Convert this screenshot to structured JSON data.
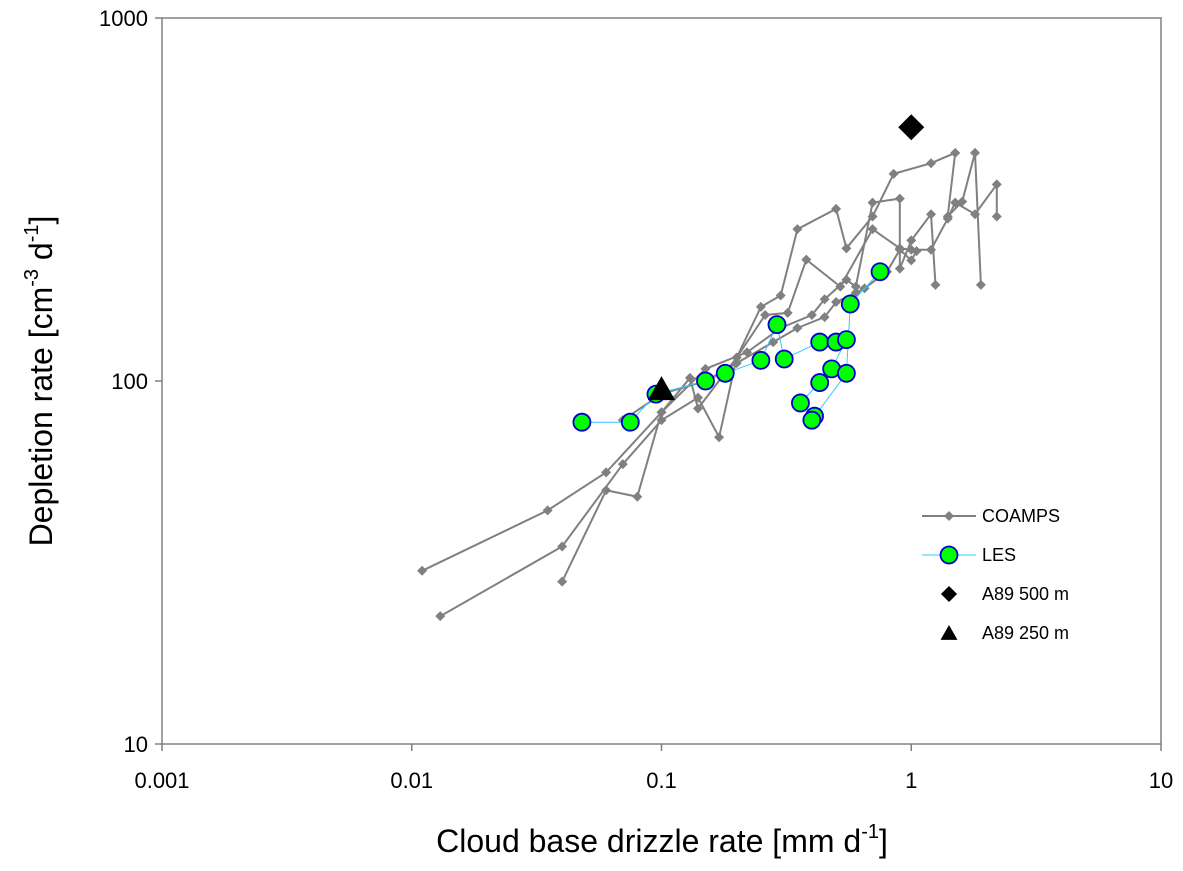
{
  "chart_data": {
    "type": "scatter",
    "title": "",
    "xlabel": "Cloud base drizzle rate [mm d",
    "xlabel_sup": "-1",
    "xlabel_end": "]",
    "ylabel": "Depletion rate [cm",
    "ylabel_sup1": "-3",
    "ylabel_mid": " d",
    "ylabel_sup2": "-1",
    "ylabel_end": "]",
    "x_scale": "log",
    "y_scale": "log",
    "xlim": [
      0.001,
      10
    ],
    "ylim": [
      10,
      1000
    ],
    "x_ticks": [
      {
        "value": 0.001,
        "label": "0.001"
      },
      {
        "value": 0.01,
        "label": "0.01"
      },
      {
        "value": 0.1,
        "label": "0.1"
      },
      {
        "value": 1,
        "label": "1"
      },
      {
        "value": 10,
        "label": "10"
      }
    ],
    "y_ticks": [
      {
        "value": 10,
        "label": "10"
      },
      {
        "value": 100,
        "label": "100"
      },
      {
        "value": 1000,
        "label": "1000"
      }
    ],
    "grid": false,
    "legend_position": "right",
    "series": [
      {
        "name": "COAMPS",
        "color": "#808080",
        "marker": "small-diamond",
        "connected": true,
        "traces": [
          [
            [
              0.011,
              30
            ],
            [
              0.035,
              44
            ],
            [
              0.06,
              56
            ],
            [
              0.1,
              82
            ],
            [
              0.13,
              102
            ],
            [
              0.14,
              84
            ],
            [
              0.2,
              116
            ],
            [
              0.25,
              160
            ],
            [
              0.3,
              172
            ],
            [
              0.35,
              262
            ],
            [
              0.5,
              298
            ],
            [
              0.55,
              232
            ],
            [
              0.7,
              284
            ],
            [
              0.85,
              372
            ],
            [
              1.2,
              398
            ],
            [
              1.5,
              425
            ],
            [
              1.4,
              284
            ],
            [
              1.6,
              312
            ],
            [
              1.8,
              425
            ],
            [
              1.9,
              184
            ]
          ],
          [
            [
              0.013,
              22.5
            ],
            [
              0.04,
              35
            ],
            [
              0.07,
              59
            ],
            [
              0.1,
              78
            ],
            [
              0.14,
              90
            ],
            [
              0.17,
              70
            ],
            [
              0.2,
              116
            ],
            [
              0.26,
              152
            ],
            [
              0.32,
              154
            ],
            [
              0.38,
              216
            ],
            [
              0.52,
              182
            ],
            [
              0.7,
              262
            ],
            [
              0.9,
              232
            ],
            [
              1.0,
              230
            ],
            [
              1.2,
              230
            ],
            [
              1.4,
              280
            ],
            [
              1.5,
              310
            ],
            [
              1.8,
              288
            ],
            [
              2.2,
              348
            ],
            [
              2.2,
              284
            ]
          ],
          [
            [
              0.04,
              28
            ],
            [
              0.06,
              50
            ],
            [
              0.08,
              48
            ],
            [
              0.1,
              82
            ],
            [
              0.15,
              108
            ],
            [
              0.22,
              120
            ],
            [
              0.3,
              140
            ],
            [
              0.4,
              152
            ],
            [
              0.45,
              168
            ],
            [
              0.55,
              190
            ],
            [
              0.6,
              182
            ],
            [
              0.7,
              310
            ],
            [
              0.9,
              318
            ],
            [
              0.9,
              204
            ],
            [
              1.0,
              244
            ],
            [
              1.2,
              288
            ],
            [
              1.25,
              184
            ]
          ],
          [
            [
              0.07,
              78
            ],
            [
              0.1,
              92
            ],
            [
              0.15,
              100
            ],
            [
              0.2,
              112
            ],
            [
              0.28,
              128
            ],
            [
              0.35,
              140
            ],
            [
              0.45,
              150
            ],
            [
              0.5,
              165
            ],
            [
              0.6,
              175
            ],
            [
              0.65,
              180
            ],
            [
              0.8,
              200
            ],
            [
              0.9,
              230
            ],
            [
              1.0,
              215
            ],
            [
              1.05,
              228
            ]
          ]
        ]
      },
      {
        "name": "LES",
        "color": "#33ccff",
        "marker_fill": "#00ff00",
        "marker_stroke": "#0000cc",
        "marker": "circle",
        "connected": true,
        "traces": [
          [
            [
              0.048,
              77
            ],
            [
              0.075,
              77
            ],
            [
              0.095,
              92
            ],
            [
              0.15,
              100
            ],
            [
              0.18,
              105
            ],
            [
              0.25,
              114
            ],
            [
              0.29,
              143
            ],
            [
              0.31,
              115
            ],
            [
              0.43,
              128
            ],
            [
              0.5,
              128
            ],
            [
              0.55,
              130
            ],
            [
              0.48,
              108
            ],
            [
              0.43,
              99
            ],
            [
              0.36,
              87
            ],
            [
              0.41,
              80
            ],
            [
              0.4,
              78
            ],
            [
              0.55,
              105
            ],
            [
              0.57,
              163
            ],
            [
              0.75,
              200
            ]
          ]
        ]
      },
      {
        "name": "A89 500 m",
        "color": "#000000",
        "marker": "diamond",
        "connected": false,
        "points": [
          [
            1.0,
            500
          ]
        ]
      },
      {
        "name": "A89 250 m",
        "color": "#000000",
        "marker": "triangle",
        "connected": false,
        "points": [
          [
            0.1,
            95
          ]
        ]
      }
    ]
  }
}
